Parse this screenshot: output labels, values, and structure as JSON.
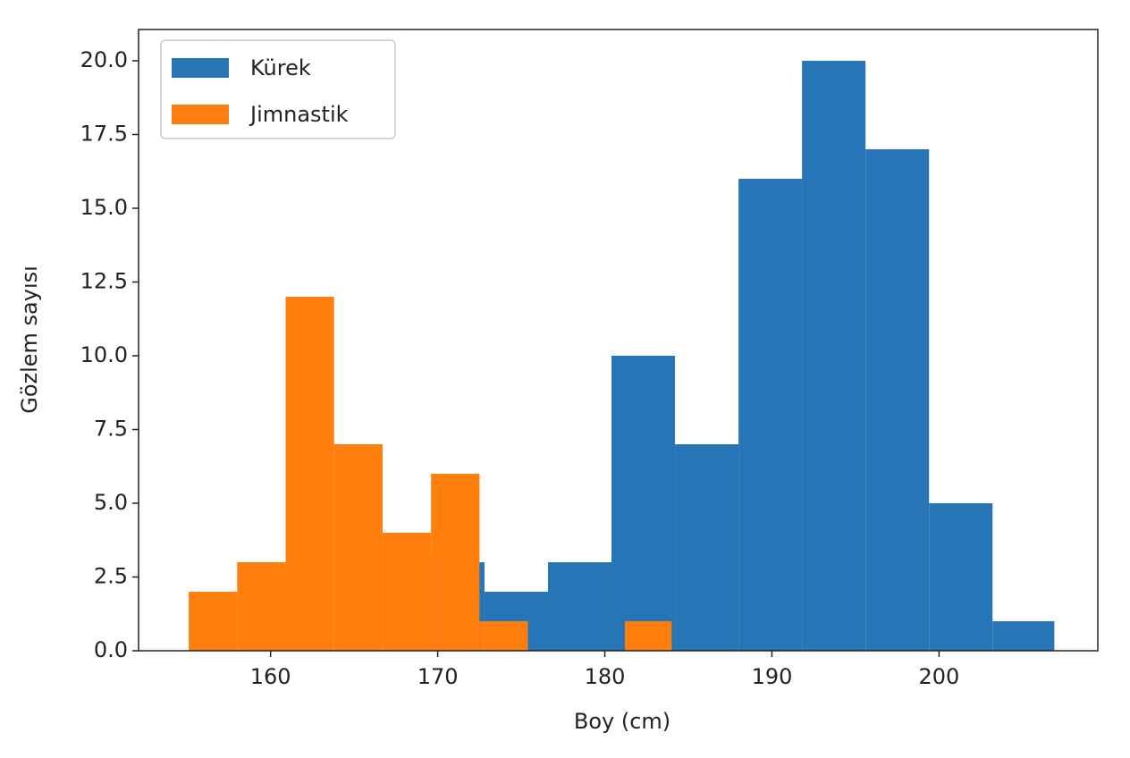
{
  "chart_data": {
    "type": "histogram",
    "xlabel": "Boy (cm)",
    "ylabel": "Gözlem sayısı",
    "series": [
      {
        "name": "Kürek",
        "color": "#2775b6",
        "bins": [
          169.0,
          172.8,
          176.6,
          180.4,
          184.2,
          188.0,
          191.8,
          195.6,
          199.4,
          203.2,
          206.9
        ],
        "values": [
          3,
          2,
          3,
          10,
          7,
          16,
          20,
          17,
          5,
          1
        ]
      },
      {
        "name": "Jimnastik",
        "color": "#ff7f0e",
        "bins": [
          155.1,
          158.0,
          160.9,
          163.8,
          166.7,
          169.6,
          172.5,
          175.4,
          178.3,
          181.2,
          184.0
        ],
        "values": [
          2,
          3,
          12,
          7,
          4,
          6,
          1,
          0,
          0,
          1
        ]
      }
    ],
    "xlim": [
      152.1,
      209.5
    ],
    "ylim": [
      0,
      21.06
    ],
    "xticks": [
      160,
      170,
      180,
      190,
      200
    ],
    "yticks": [
      {
        "value": 0,
        "label": "0.0"
      },
      {
        "value": 2.5,
        "label": "2.5"
      },
      {
        "value": 5,
        "label": "5.0"
      },
      {
        "value": 7.5,
        "label": "7.5"
      },
      {
        "value": 10,
        "label": "10.0"
      },
      {
        "value": 12.5,
        "label": "12.5"
      },
      {
        "value": 15,
        "label": "15.0"
      },
      {
        "value": 17.5,
        "label": "17.5"
      },
      {
        "value": 20,
        "label": "20.0"
      }
    ],
    "legend": "upper left",
    "grid": false
  }
}
